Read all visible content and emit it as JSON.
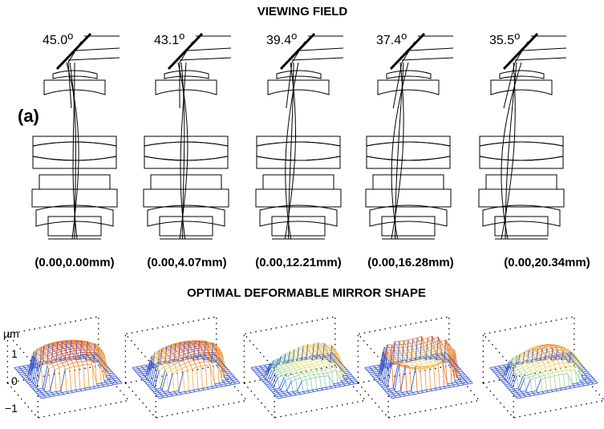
{
  "headers": {
    "top": "VIEWING FIELD",
    "bottom": "OPTIMAL DEFORMABLE MIRROR SHAPE"
  },
  "panel_label": "(a)",
  "axis": {
    "unit": "µm",
    "ticks": [
      "1",
      "0",
      "−1"
    ]
  },
  "fields": [
    {
      "angle_value": "45.0",
      "angle_unit": "o",
      "coord": "(0.00,0.00mm)",
      "tilt": 0.0,
      "surface_style": "dome-warm"
    },
    {
      "angle_value": "43.1",
      "angle_unit": "o",
      "coord": "(0.00,4.07mm)",
      "tilt": 0.22,
      "surface_style": "dome-warm-cool"
    },
    {
      "angle_value": "39.4",
      "angle_unit": "o",
      "coord": "(0.00,12.21mm)",
      "tilt": 0.62,
      "surface_style": "saddle-blue"
    },
    {
      "angle_value": "37.4",
      "angle_unit": "o",
      "coord": "(0.00,16.28mm)",
      "tilt": 0.82,
      "surface_style": "bowl-orange"
    },
    {
      "angle_value": "35.5",
      "angle_unit": "o",
      "coord": "(0.00,20.34mm)",
      "tilt": 1.0,
      "surface_style": "ridge-mixed"
    }
  ]
}
